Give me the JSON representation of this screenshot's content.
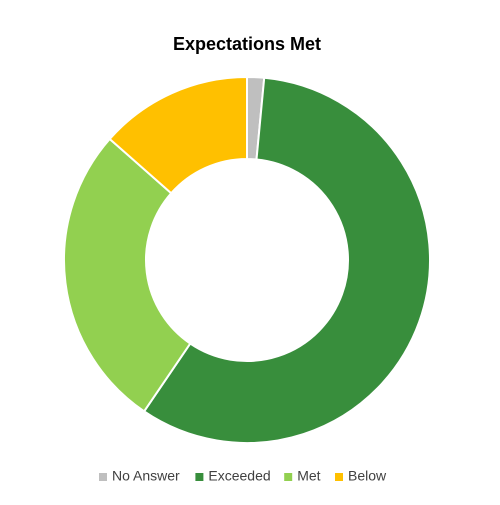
{
  "chart_data": {
    "type": "donut",
    "title": "Expectations Met",
    "categories": [
      "No Answer",
      "Exceeded",
      "Met",
      "Below"
    ],
    "values": [
      1.5,
      58,
      27,
      13.5
    ],
    "colors": [
      "#bfbfbf",
      "#388e3c",
      "#92d050",
      "#ffc000"
    ],
    "legend": "bottom"
  }
}
